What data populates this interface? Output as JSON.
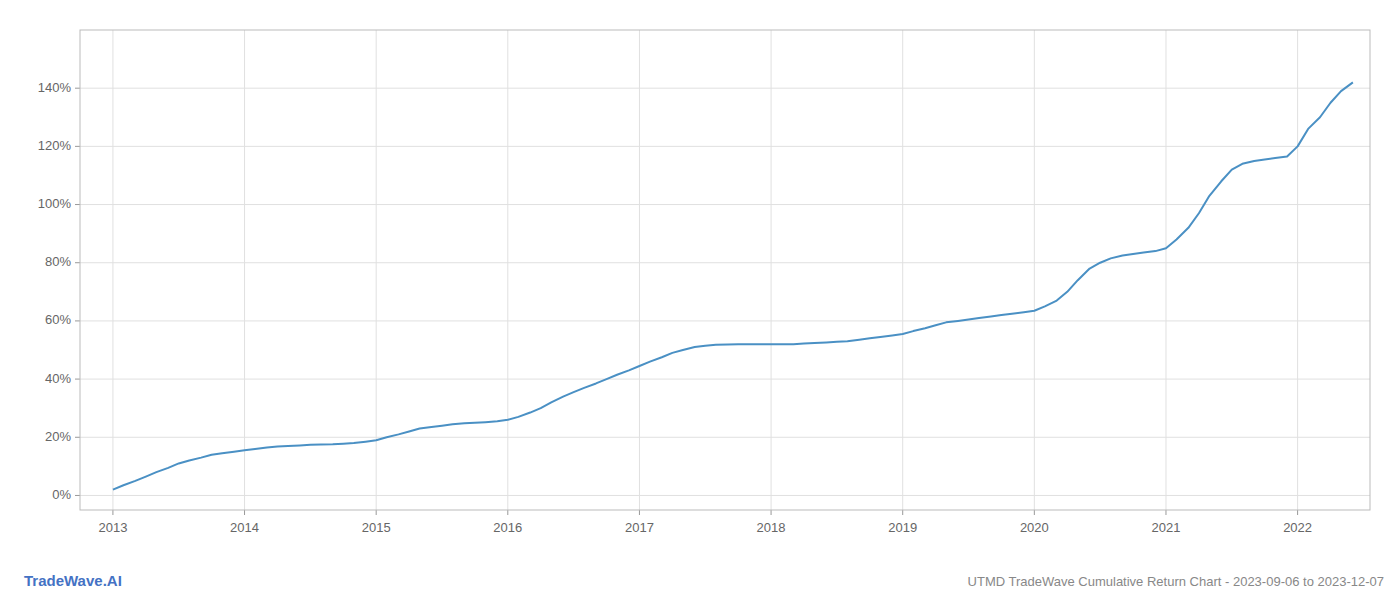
{
  "chart_data": {
    "type": "line",
    "title": "UTMD TradeWave Cumulative Return Chart - 2023-09-06 to 2023-12-07",
    "annotations": [
      "TradeWave.AI"
    ],
    "color": "#4a90c4",
    "grid": true,
    "x": [
      2013.0,
      2013.08,
      2013.17,
      2013.25,
      2013.33,
      2013.42,
      2013.5,
      2013.58,
      2013.67,
      2013.75,
      2013.83,
      2013.92,
      2014.0,
      2014.08,
      2014.17,
      2014.25,
      2014.33,
      2014.42,
      2014.5,
      2014.58,
      2014.67,
      2014.75,
      2014.83,
      2014.92,
      2015.0,
      2015.08,
      2015.17,
      2015.25,
      2015.33,
      2015.42,
      2015.5,
      2015.58,
      2015.67,
      2015.75,
      2015.83,
      2015.92,
      2016.0,
      2016.08,
      2016.17,
      2016.25,
      2016.33,
      2016.42,
      2016.5,
      2016.58,
      2016.67,
      2016.75,
      2016.83,
      2016.92,
      2017.0,
      2017.08,
      2017.17,
      2017.25,
      2017.33,
      2017.42,
      2017.5,
      2017.58,
      2017.67,
      2017.75,
      2017.83,
      2017.92,
      2018.0,
      2018.08,
      2018.17,
      2018.25,
      2018.33,
      2018.42,
      2018.5,
      2018.58,
      2018.67,
      2018.75,
      2018.83,
      2018.92,
      2019.0,
      2019.08,
      2019.17,
      2019.25,
      2019.33,
      2019.42,
      2019.5,
      2019.58,
      2019.67,
      2019.75,
      2019.83,
      2019.92,
      2020.0,
      2020.08,
      2020.17,
      2020.25,
      2020.33,
      2020.42,
      2020.5,
      2020.58,
      2020.67,
      2020.75,
      2020.83,
      2020.92,
      2021.0,
      2021.08,
      2021.17,
      2021.25,
      2021.33,
      2021.42,
      2021.5,
      2021.58,
      2021.67,
      2021.75,
      2021.83,
      2021.92,
      2022.0,
      2022.08,
      2022.17,
      2022.25,
      2022.33,
      2022.42
    ],
    "values": [
      2.0,
      3.5,
      5.0,
      6.5,
      8.0,
      9.5,
      11.0,
      12.0,
      13.0,
      14.0,
      14.5,
      15.0,
      15.5,
      16.0,
      16.5,
      16.8,
      17.0,
      17.2,
      17.4,
      17.5,
      17.6,
      17.8,
      18.0,
      18.5,
      19.0,
      20.0,
      21.0,
      22.0,
      23.0,
      23.5,
      24.0,
      24.5,
      24.8,
      25.0,
      25.2,
      25.5,
      26.0,
      27.0,
      28.5,
      30.0,
      32.0,
      34.0,
      35.5,
      37.0,
      38.5,
      40.0,
      41.5,
      43.0,
      44.5,
      46.0,
      47.5,
      49.0,
      50.0,
      51.0,
      51.5,
      51.8,
      51.9,
      52.0,
      52.0,
      52.0,
      52.0,
      52.0,
      52.0,
      52.2,
      52.4,
      52.6,
      52.8,
      53.0,
      53.5,
      54.0,
      54.5,
      55.0,
      55.5,
      56.5,
      57.5,
      58.5,
      59.5,
      60.0,
      60.5,
      61.0,
      61.5,
      62.0,
      62.5,
      63.0,
      63.5,
      65.0,
      67.0,
      70.0,
      74.0,
      78.0,
      80.0,
      81.5,
      82.5,
      83.0,
      83.5,
      84.0,
      85.0,
      88.0,
      92.0,
      97.0,
      103.0,
      108.0,
      112.0,
      114.0,
      115.0,
      115.5,
      116.0,
      116.5,
      120.0,
      126.0,
      130.0,
      135.0,
      139.0,
      142.0
    ],
    "xlim": [
      2012.75,
      2022.55
    ],
    "xticks": [
      2013,
      2014,
      2015,
      2016,
      2017,
      2018,
      2019,
      2020,
      2021,
      2022
    ],
    "ylim": [
      -5,
      160
    ],
    "yticks": [
      {
        "value": 0,
        "label": "0%"
      },
      {
        "value": 20,
        "label": "20%"
      },
      {
        "value": 40,
        "label": "40%"
      },
      {
        "value": 60,
        "label": "60%"
      },
      {
        "value": 80,
        "label": "80%"
      },
      {
        "value": 100,
        "label": "100%"
      },
      {
        "value": 120,
        "label": "120%"
      },
      {
        "value": 140,
        "label": "140%"
      }
    ]
  }
}
